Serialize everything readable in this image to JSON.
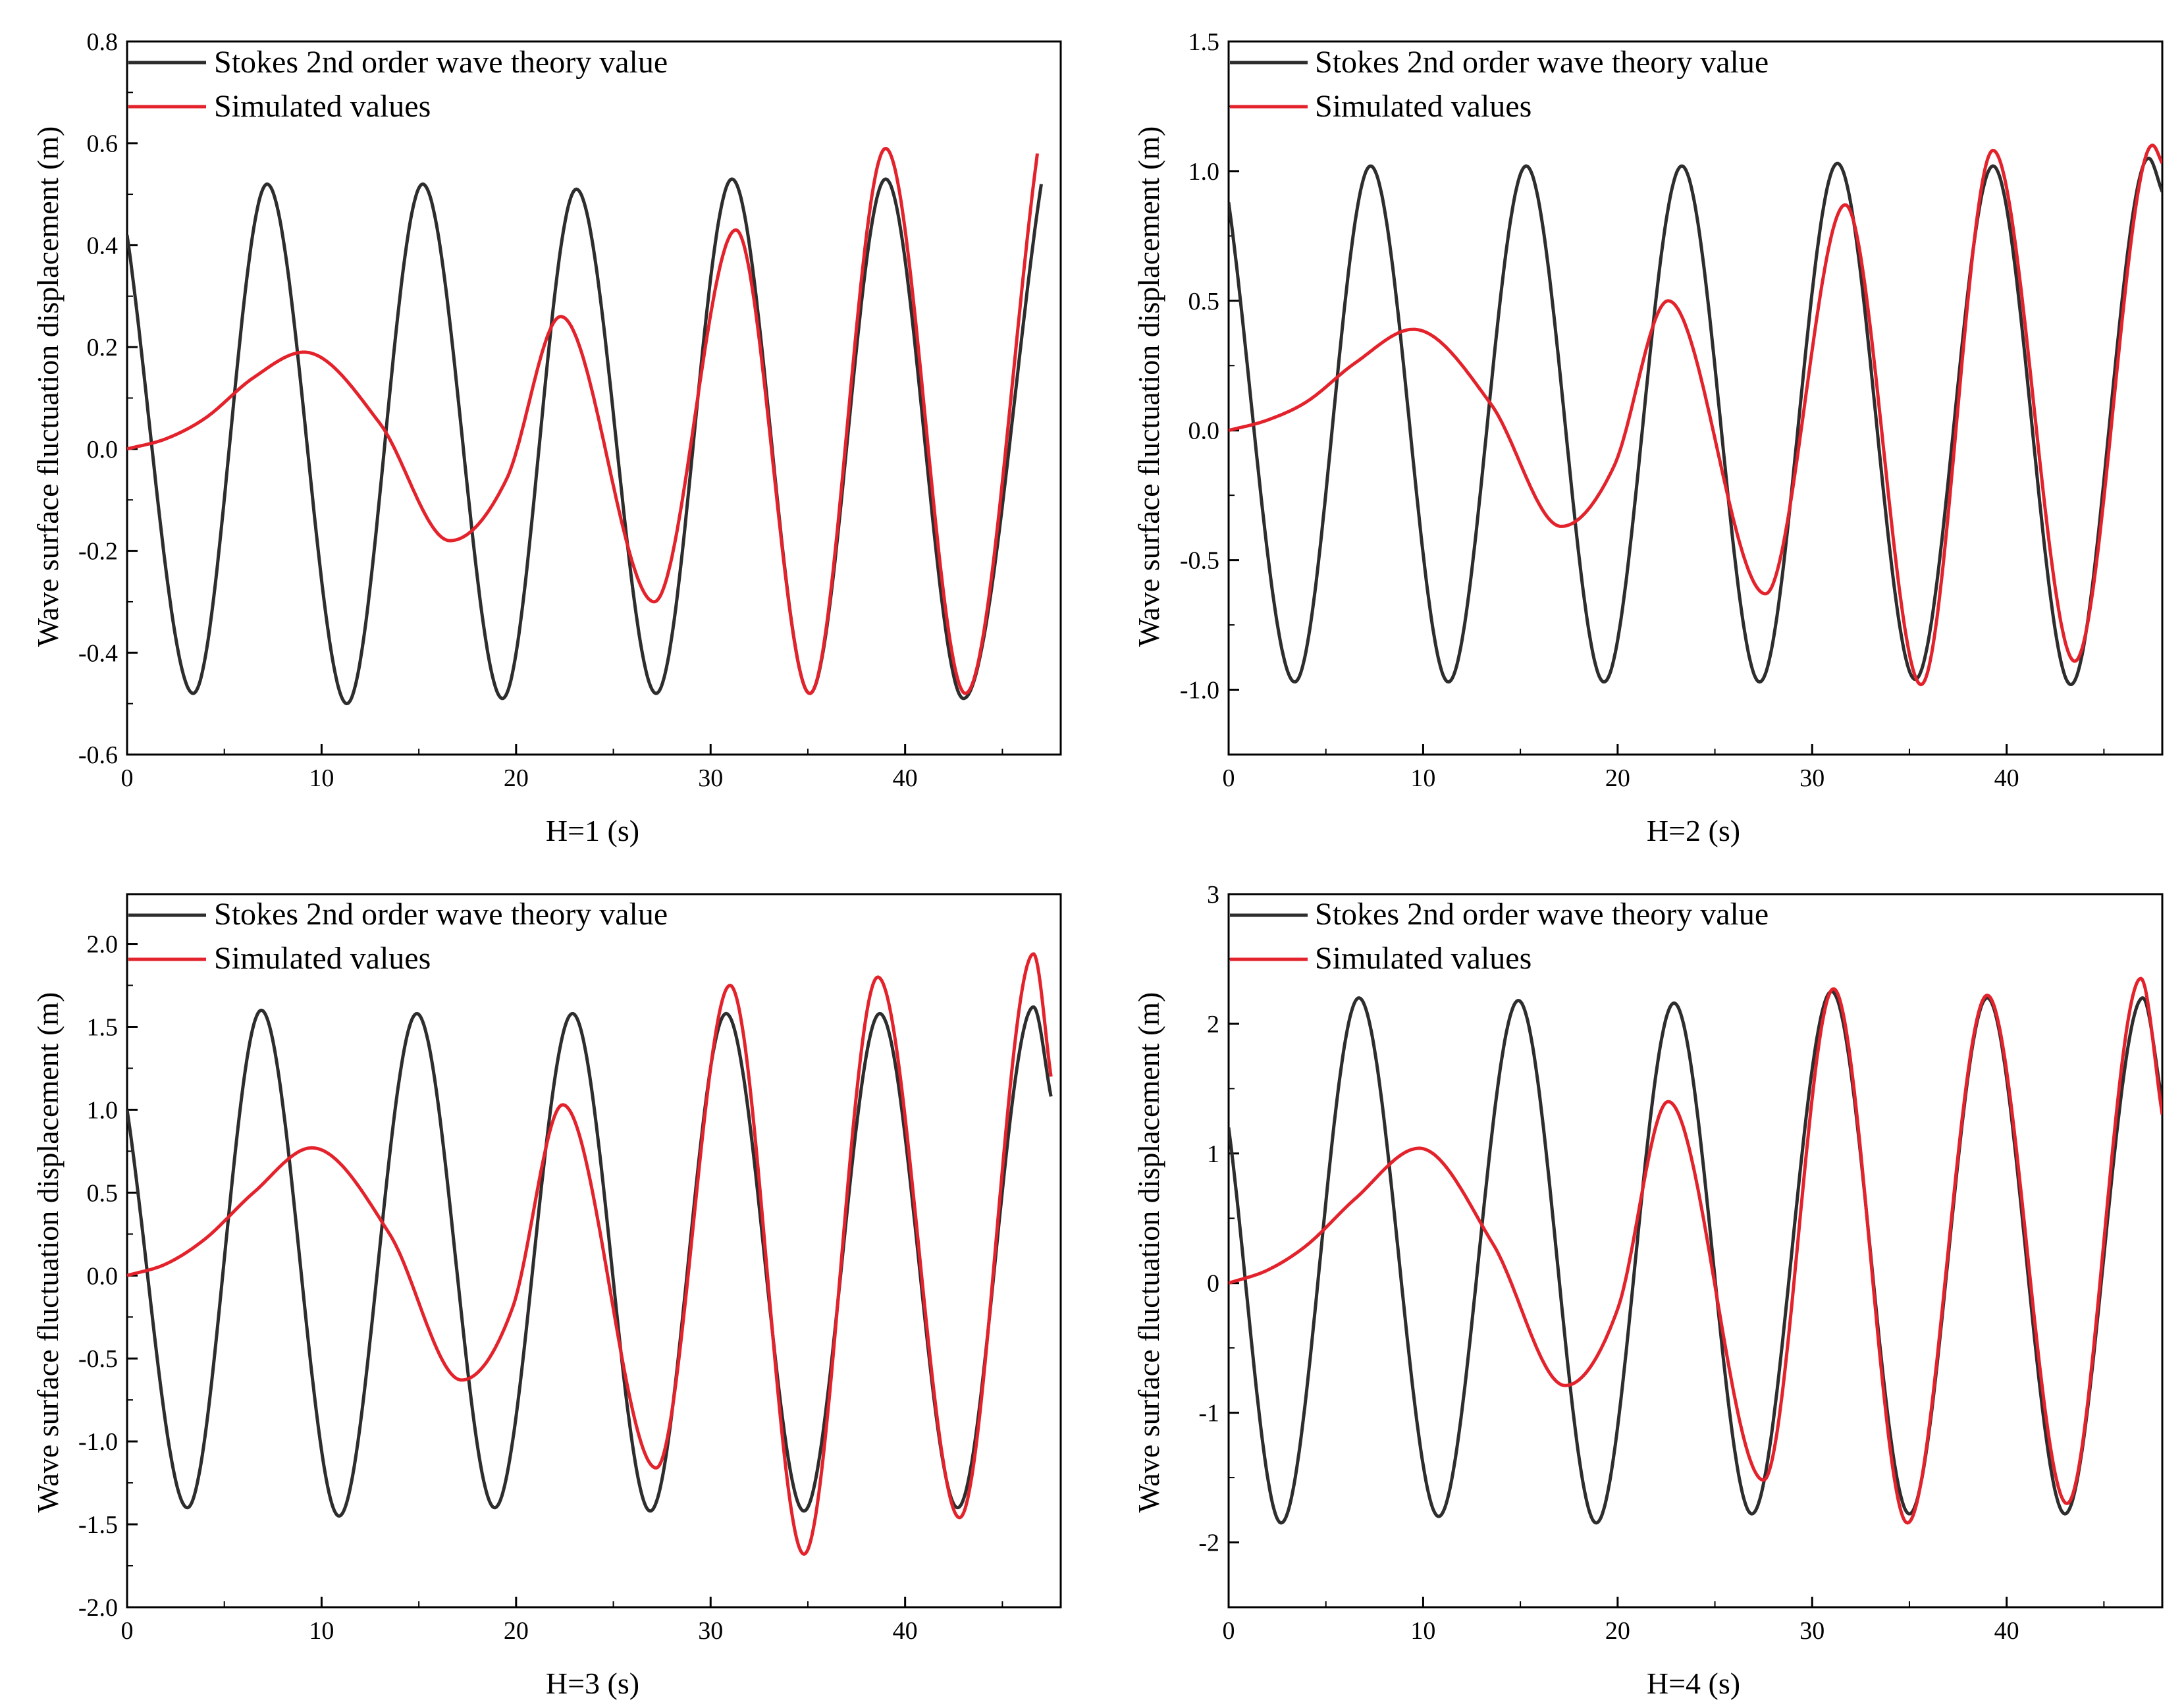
{
  "colors": {
    "theory": "#2d2d2d",
    "simulated": "#e3222b",
    "axis": "#000000",
    "background": "#ffffff"
  },
  "chart_data": [
    {
      "type": "line",
      "panel": "top-left",
      "title": "",
      "xlabel": "H=1 (s)",
      "ylabel": "Wave surface fluctuation displacement (m)",
      "xlim": [
        0,
        48
      ],
      "ylim": [
        -0.6,
        0.8
      ],
      "xticks": [
        0,
        10,
        20,
        30,
        40
      ],
      "xtick_labels": [
        "0",
        "10",
        "20",
        "30",
        "40"
      ],
      "yticks": [
        -0.6,
        -0.4,
        -0.2,
        0.0,
        0.2,
        0.4,
        0.6,
        0.8
      ],
      "ytick_labels": [
        "-0.6",
        "-0.4",
        "-0.2",
        "0.0",
        "0.2",
        "0.4",
        "0.6",
        "0.8"
      ],
      "legend": [
        "Stokes 2nd order wave theory value",
        "Simulated values"
      ],
      "legend_position": "top-left",
      "grid": false,
      "series": [
        {
          "name": "Stokes 2nd order wave theory value",
          "color_key": "theory",
          "x": [
            0,
            3.4,
            7.2,
            11.3,
            15.2,
            19.3,
            23.1,
            27.2,
            31.1,
            35.1,
            39.0,
            43.0,
            47.0
          ],
          "y": [
            0.42,
            -0.48,
            0.52,
            -0.5,
            0.52,
            -0.49,
            0.51,
            -0.48,
            0.53,
            -0.48,
            0.53,
            -0.49,
            0.52
          ]
        },
        {
          "name": "Simulated values",
          "color_key": "simulated",
          "x": [
            0,
            2,
            4,
            6.5,
            9.1,
            13,
            16.6,
            19.5,
            22.3,
            27.1,
            31.3,
            35.1,
            39.0,
            43.1,
            46.8
          ],
          "y": [
            0.0,
            0.02,
            0.06,
            0.14,
            0.19,
            0.05,
            -0.18,
            -0.06,
            0.26,
            -0.3,
            0.43,
            -0.48,
            0.59,
            -0.48,
            0.58
          ]
        }
      ]
    },
    {
      "type": "line",
      "panel": "top-right",
      "title": "",
      "xlabel": "H=2 (s)",
      "ylabel": "Wave surface fluctuation displacement (m)",
      "xlim": [
        0,
        48
      ],
      "ylim": [
        -1.25,
        1.5
      ],
      "xticks": [
        0,
        10,
        20,
        30,
        40
      ],
      "xtick_labels": [
        "0",
        "10",
        "20",
        "30",
        "40"
      ],
      "yticks": [
        -1.0,
        -0.5,
        0.0,
        0.5,
        1.0,
        1.5
      ],
      "ytick_labels": [
        "-1.0",
        "-0.5",
        "0.0",
        "0.5",
        "1.0",
        "1.5"
      ],
      "legend": [
        "Stokes 2nd order wave theory value",
        "Simulated values"
      ],
      "legend_position": "top-left",
      "grid": false,
      "series": [
        {
          "name": "Stokes 2nd order wave theory value",
          "color_key": "theory",
          "x": [
            0,
            3.4,
            7.3,
            11.3,
            15.3,
            19.3,
            23.3,
            27.3,
            31.3,
            35.3,
            39.3,
            43.3,
            47.3,
            48
          ],
          "y": [
            0.88,
            -0.97,
            1.02,
            -0.97,
            1.02,
            -0.97,
            1.02,
            -0.97,
            1.03,
            -0.96,
            1.02,
            -0.98,
            1.05,
            0.92
          ]
        },
        {
          "name": "Simulated values",
          "color_key": "simulated",
          "x": [
            0,
            2,
            4,
            6.5,
            9.5,
            13.5,
            17.1,
            19.8,
            22.6,
            27.6,
            31.7,
            35.6,
            39.3,
            43.5,
            47.5,
            48
          ],
          "y": [
            0.0,
            0.04,
            0.11,
            0.26,
            0.39,
            0.1,
            -0.37,
            -0.14,
            0.5,
            -0.63,
            0.87,
            -0.98,
            1.08,
            -0.89,
            1.1,
            1.03
          ]
        }
      ]
    },
    {
      "type": "line",
      "panel": "bottom-left",
      "title": "",
      "xlabel": "H=3 (s)",
      "ylabel": "Wave surface fluctuation displacement (m)",
      "xlim": [
        0,
        48
      ],
      "ylim": [
        -2.0,
        2.3
      ],
      "xticks": [
        0,
        10,
        20,
        30,
        40
      ],
      "xtick_labels": [
        "0",
        "10",
        "20",
        "30",
        "40"
      ],
      "yticks": [
        -2.0,
        -1.5,
        -1.0,
        -0.5,
        0.0,
        0.5,
        1.0,
        1.5,
        2.0
      ],
      "ytick_labels": [
        "-2.0",
        "-1.5",
        "-1.0",
        "-0.5",
        "0.0",
        "0.5",
        "1.0",
        "1.5",
        "2.0"
      ],
      "legend": [
        "Stokes 2nd order wave theory value",
        "Simulated values"
      ],
      "legend_position": "top-left",
      "grid": false,
      "series": [
        {
          "name": "Stokes 2nd order wave theory value",
          "color_key": "theory",
          "x": [
            0,
            3.1,
            6.9,
            10.9,
            14.9,
            18.9,
            22.9,
            26.9,
            30.8,
            34.8,
            38.7,
            42.7,
            46.6,
            47.5
          ],
          "y": [
            1.0,
            -1.4,
            1.6,
            -1.45,
            1.58,
            -1.4,
            1.58,
            -1.42,
            1.58,
            -1.42,
            1.58,
            -1.4,
            1.62,
            1.08
          ]
        },
        {
          "name": "Simulated values",
          "color_key": "simulated",
          "x": [
            0,
            2,
            4,
            6.5,
            9.5,
            13.5,
            17.2,
            19.8,
            22.4,
            27.2,
            31.0,
            34.8,
            38.6,
            42.8,
            46.6,
            47.5
          ],
          "y": [
            0.0,
            0.07,
            0.22,
            0.5,
            0.77,
            0.25,
            -0.63,
            -0.2,
            1.03,
            -1.16,
            1.75,
            -1.68,
            1.8,
            -1.46,
            1.94,
            1.2
          ]
        }
      ]
    },
    {
      "type": "line",
      "panel": "bottom-right",
      "title": "",
      "xlabel": "H=4 (s)",
      "ylabel": "Wave surface fluctuation displacement (m)",
      "xlim": [
        0,
        48
      ],
      "ylim": [
        -2.5,
        3.0
      ],
      "xticks": [
        0,
        10,
        20,
        30,
        40
      ],
      "xtick_labels": [
        "0",
        "10",
        "20",
        "30",
        "40"
      ],
      "yticks": [
        -2,
        -1,
        0,
        1,
        2,
        3
      ],
      "ytick_labels": [
        "-2",
        "-1",
        "0",
        "1",
        "2",
        "3"
      ],
      "legend": [
        "Stokes 2nd order wave theory value",
        "Simulated values"
      ],
      "legend_position": "top-left",
      "grid": false,
      "series": [
        {
          "name": "Stokes 2nd order wave theory value",
          "color_key": "theory",
          "x": [
            0,
            2.7,
            6.7,
            10.8,
            14.9,
            18.9,
            22.9,
            26.9,
            31.0,
            35.0,
            39.0,
            43.0,
            47.0,
            48
          ],
          "y": [
            1.2,
            -1.85,
            2.2,
            -1.8,
            2.18,
            -1.85,
            2.16,
            -1.78,
            2.25,
            -1.78,
            2.2,
            -1.78,
            2.2,
            1.4
          ]
        },
        {
          "name": "Simulated values",
          "color_key": "simulated",
          "x": [
            0,
            2,
            4,
            6.5,
            9.8,
            13.6,
            17.3,
            20,
            22.6,
            27.5,
            31.1,
            34.9,
            39.0,
            43.1,
            46.9,
            48
          ],
          "y": [
            0.0,
            0.1,
            0.29,
            0.65,
            1.04,
            0.3,
            -0.79,
            -0.2,
            1.4,
            -1.52,
            2.27,
            -1.85,
            2.22,
            -1.7,
            2.35,
            1.3
          ]
        }
      ]
    }
  ]
}
